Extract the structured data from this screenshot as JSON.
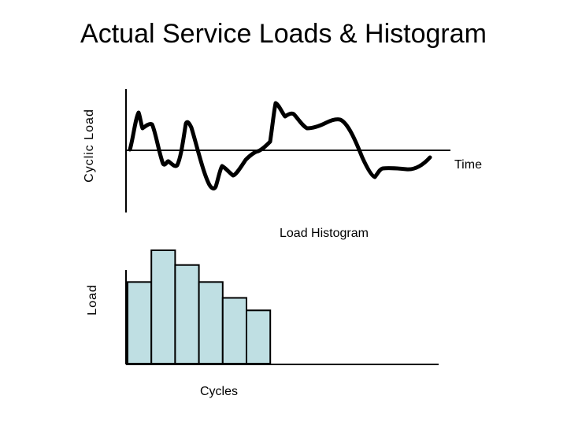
{
  "title": "Actual Service Loads & Histogram",
  "cyclic_chart": {
    "ylabel": "Cyclic Load",
    "xlabel": "Time",
    "line_color": "#000000"
  },
  "histogram": {
    "title": "Load Histogram",
    "ylabel": "Load",
    "xlabel": "Cycles",
    "bar_fill": "#bfdfe3",
    "bar_stroke": "#000000",
    "relative_heights": [
      0.72,
      1.0,
      0.87,
      0.72,
      0.58,
      0.47
    ]
  }
}
